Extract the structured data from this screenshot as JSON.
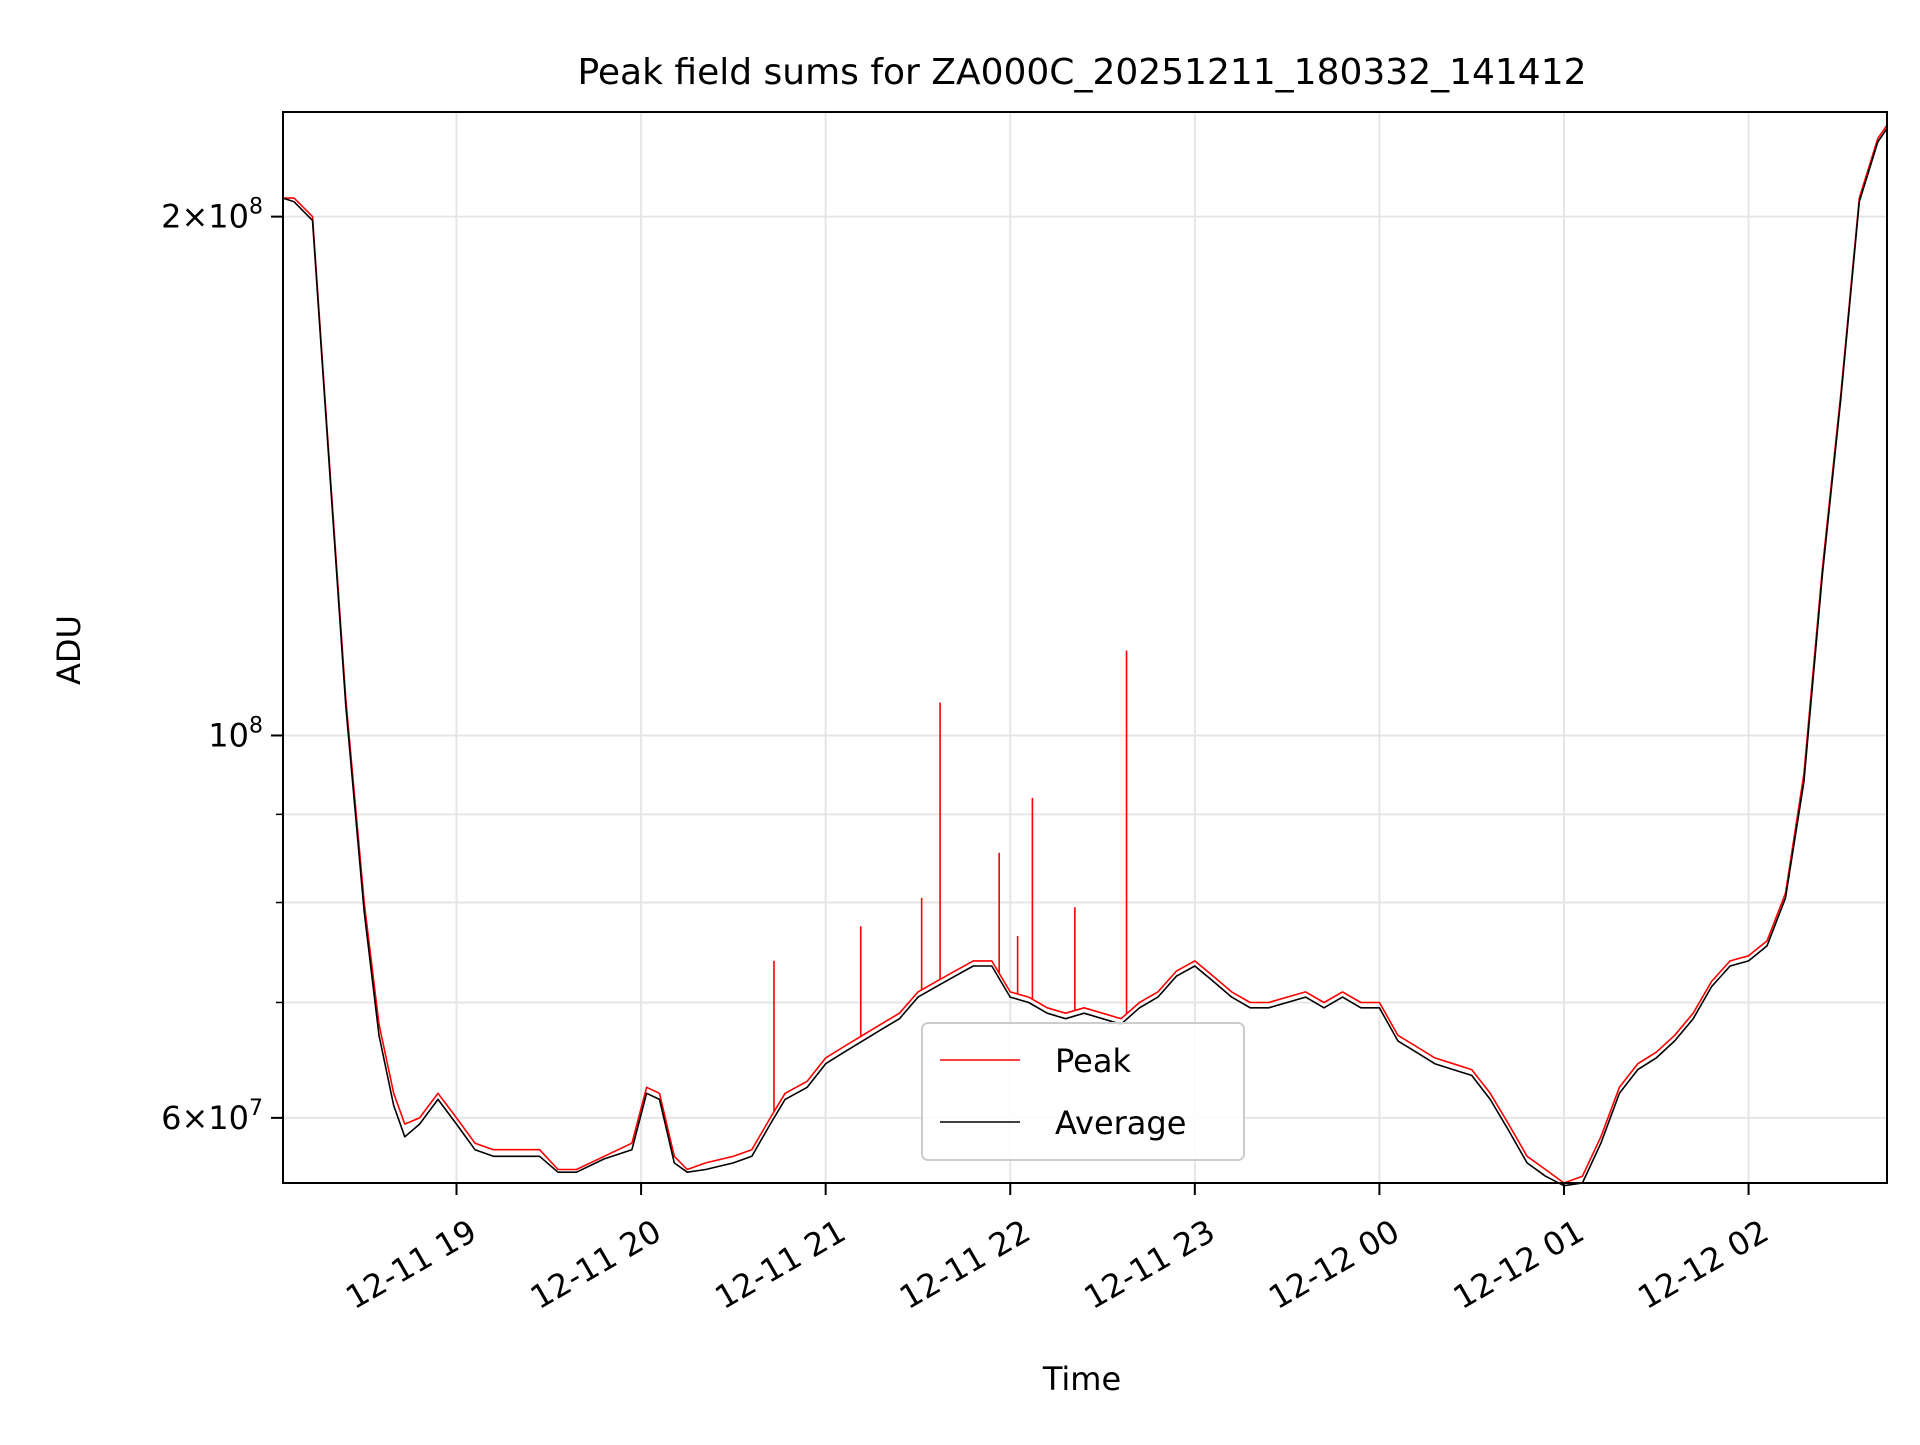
{
  "chart_data": {
    "type": "line",
    "title": "Peak field sums for ZA000C_20251211_180332_141412",
    "xlabel": "Time",
    "ylabel": "ADU",
    "yscale": "log",
    "ylim": [
      55000000,
      230000000
    ],
    "xlim_hours": [
      18.06,
      26.75
    ],
    "grid": true,
    "legend_position": "lower-center",
    "x_ticks": [
      {
        "hour": 19,
        "label": "12-11 19"
      },
      {
        "hour": 20,
        "label": "12-11 20"
      },
      {
        "hour": 21,
        "label": "12-11 21"
      },
      {
        "hour": 22,
        "label": "12-11 22"
      },
      {
        "hour": 23,
        "label": "12-11 23"
      },
      {
        "hour": 24,
        "label": "12-12 00"
      },
      {
        "hour": 25,
        "label": "12-12 01"
      },
      {
        "hour": 26,
        "label": "12-12 02"
      }
    ],
    "y_major_ticks": [
      {
        "value": 60000000,
        "mant": "6",
        "exp": "7"
      },
      {
        "value": 100000000,
        "mant": "",
        "exp": "8"
      },
      {
        "value": 200000000,
        "mant": "2",
        "exp": "8"
      }
    ],
    "y_minor_values": [
      70000000,
      80000000,
      90000000
    ],
    "series": [
      {
        "name": "Peak",
        "color": "#ff0000",
        "hours": [
          18.06,
          18.12,
          18.22,
          18.3,
          18.4,
          18.5,
          18.58,
          18.66,
          18.72,
          18.8,
          18.85,
          18.9,
          19.0,
          19.1,
          19.2,
          19.3,
          19.45,
          19.55,
          19.65,
          19.8,
          19.95,
          20.03,
          20.1,
          20.18,
          20.25,
          20.35,
          20.5,
          20.6,
          20.7,
          20.78,
          20.9,
          21.0,
          21.1,
          21.2,
          21.3,
          21.4,
          21.5,
          21.6,
          21.7,
          21.8,
          21.9,
          22.0,
          22.1,
          22.2,
          22.3,
          22.4,
          22.5,
          22.6,
          22.7,
          22.8,
          22.9,
          23.0,
          23.1,
          23.2,
          23.3,
          23.4,
          23.5,
          23.6,
          23.7,
          23.8,
          23.9,
          24.0,
          24.1,
          24.2,
          24.3,
          24.4,
          24.5,
          24.6,
          24.7,
          24.8,
          24.9,
          25.0,
          25.1,
          25.2,
          25.3,
          25.4,
          25.5,
          25.6,
          25.7,
          25.8,
          25.9,
          26.0,
          26.1,
          26.2,
          26.3,
          26.4,
          26.5,
          26.6,
          26.7,
          26.75
        ],
        "values": [
          205000000,
          205000000,
          200000000,
          150000000,
          105000000,
          80000000,
          68000000,
          62000000,
          59500000,
          60000000,
          61000000,
          62000000,
          60000000,
          58000000,
          57500000,
          57500000,
          57500000,
          56000000,
          56000000,
          57000000,
          58000000,
          62500000,
          62000000,
          57000000,
          56000000,
          56500000,
          57000000,
          57500000,
          60000000,
          62000000,
          63000000,
          65000000,
          66000000,
          67000000,
          68000000,
          69000000,
          71000000,
          72000000,
          73000000,
          74000000,
          74000000,
          71000000,
          70500000,
          69500000,
          69000000,
          69500000,
          69000000,
          68500000,
          70000000,
          71000000,
          73000000,
          74000000,
          72500000,
          71000000,
          70000000,
          70000000,
          70500000,
          71000000,
          70000000,
          71000000,
          70000000,
          70000000,
          67000000,
          66000000,
          65000000,
          64500000,
          64000000,
          62000000,
          59500000,
          57000000,
          56000000,
          55000000,
          55500000,
          58500000,
          62500000,
          64500000,
          65500000,
          67000000,
          69000000,
          72000000,
          74000000,
          74500000,
          76000000,
          81000000,
          95000000,
          125000000,
          158000000,
          205000000,
          222000000,
          226000000
        ]
      },
      {
        "name": "Average",
        "color": "#000000",
        "hours": [
          18.06,
          18.12,
          18.22,
          18.3,
          18.4,
          18.5,
          18.58,
          18.66,
          18.72,
          18.8,
          18.85,
          18.9,
          19.0,
          19.1,
          19.2,
          19.3,
          19.45,
          19.55,
          19.65,
          19.8,
          19.95,
          20.03,
          20.1,
          20.18,
          20.25,
          20.35,
          20.5,
          20.6,
          20.7,
          20.78,
          20.9,
          21.0,
          21.1,
          21.2,
          21.3,
          21.4,
          21.5,
          21.6,
          21.7,
          21.8,
          21.9,
          22.0,
          22.1,
          22.2,
          22.3,
          22.4,
          22.5,
          22.6,
          22.7,
          22.8,
          22.9,
          23.0,
          23.1,
          23.2,
          23.3,
          23.4,
          23.5,
          23.6,
          23.7,
          23.8,
          23.9,
          24.0,
          24.1,
          24.2,
          24.3,
          24.4,
          24.5,
          24.6,
          24.7,
          24.8,
          24.9,
          25.0,
          25.1,
          25.2,
          25.3,
          25.4,
          25.5,
          25.6,
          25.7,
          25.8,
          25.9,
          26.0,
          26.1,
          26.2,
          26.3,
          26.4,
          26.5,
          26.6,
          26.7,
          26.75
        ],
        "values": [
          205000000,
          204000000,
          199000000,
          149000000,
          104000000,
          79000000,
          67000000,
          61000000,
          58500000,
          59500000,
          60500000,
          61500000,
          59500000,
          57500000,
          57000000,
          57000000,
          57000000,
          55800000,
          55800000,
          56800000,
          57500000,
          62000000,
          61500000,
          56500000,
          55800000,
          56000000,
          56500000,
          57000000,
          59500000,
          61500000,
          62500000,
          64500000,
          65500000,
          66500000,
          67500000,
          68500000,
          70500000,
          71500000,
          72500000,
          73500000,
          73500000,
          70500000,
          70000000,
          69000000,
          68500000,
          69000000,
          68500000,
          68000000,
          69500000,
          70500000,
          72500000,
          73500000,
          72000000,
          70500000,
          69500000,
          69500000,
          70000000,
          70500000,
          69500000,
          70500000,
          69500000,
          69500000,
          66500000,
          65500000,
          64500000,
          64000000,
          63500000,
          61500000,
          59000000,
          56500000,
          55500000,
          54800000,
          55000000,
          58000000,
          62000000,
          64000000,
          65000000,
          66500000,
          68500000,
          71500000,
          73500000,
          74000000,
          75500000,
          80500000,
          94000000,
          124000000,
          157000000,
          204000000,
          221000000,
          225000000
        ]
      }
    ],
    "spikes": [
      {
        "hour": 20.72,
        "value": 74000000
      },
      {
        "hour": 21.19,
        "value": 77500000
      },
      {
        "hour": 21.52,
        "value": 80500000
      },
      {
        "hour": 21.62,
        "value": 104500000
      },
      {
        "hour": 21.94,
        "value": 85500000
      },
      {
        "hour": 22.04,
        "value": 76500000
      },
      {
        "hour": 22.12,
        "value": 92000000
      },
      {
        "hour": 22.35,
        "value": 79500000
      },
      {
        "hour": 22.63,
        "value": 112000000
      }
    ]
  }
}
